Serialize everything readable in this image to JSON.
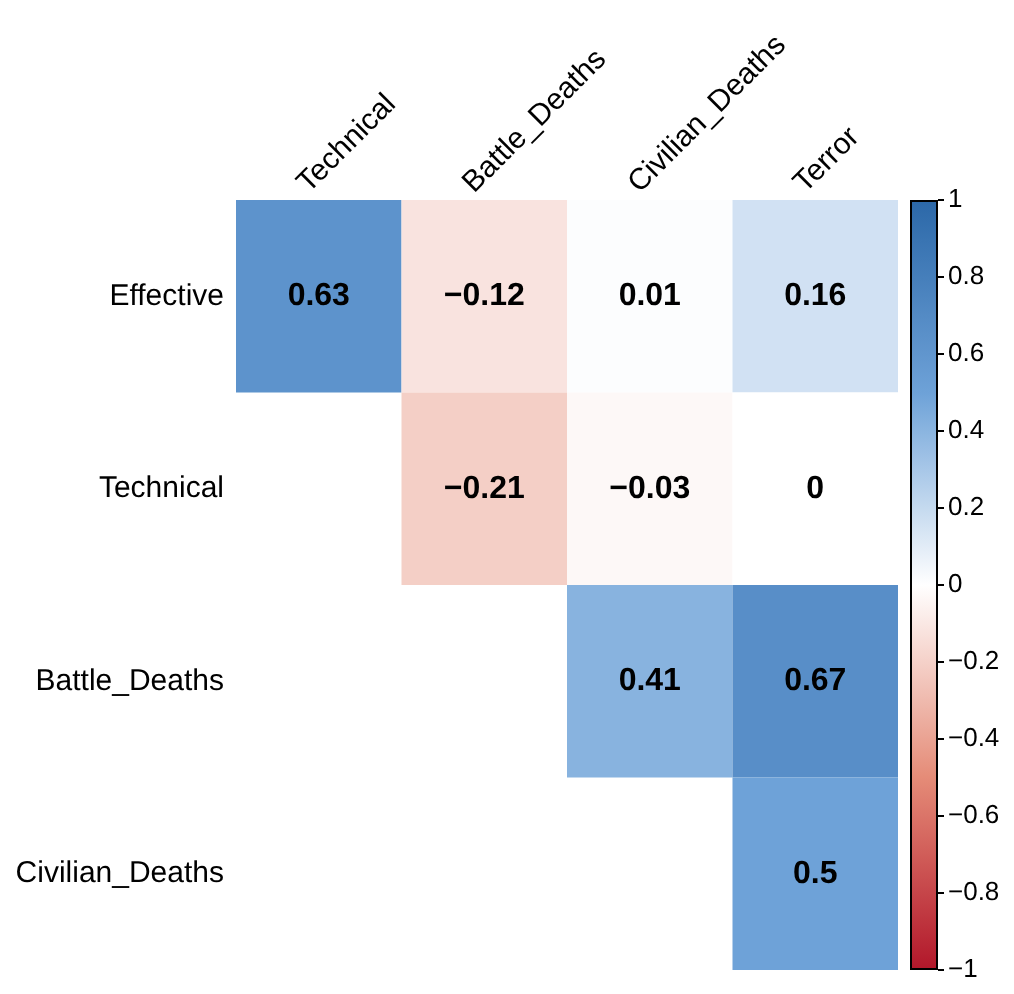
{
  "chart_data": {
    "type": "heatmap",
    "categories": [
      "Technical",
      "Battle_Deaths",
      "Civilian_Deaths",
      "Terror"
    ],
    "y_categories": [
      "Effective",
      "Technical",
      "Battle_Deaths",
      "Civilian_Deaths"
    ],
    "cells": [
      [
        0.63,
        -0.12,
        0.01,
        0.16
      ],
      [
        null,
        -0.21,
        -0.03,
        0
      ],
      [
        null,
        null,
        0.41,
        0.67
      ],
      [
        null,
        null,
        null,
        0.5
      ]
    ],
    "cell_labels": [
      [
        "0.63",
        "−0.12",
        "0.01",
        "0.16"
      ],
      [
        null,
        "−0.21",
        "−0.03",
        "0"
      ],
      [
        null,
        null,
        "0.41",
        "0.67"
      ],
      [
        null,
        null,
        null,
        "0.5"
      ]
    ],
    "clim": [
      -1,
      1
    ],
    "cticks": [
      {
        "value": 1,
        "label": "1"
      },
      {
        "value": 0.8,
        "label": "0.8"
      },
      {
        "value": 0.6,
        "label": "0.6"
      },
      {
        "value": 0.4,
        "label": "0.4"
      },
      {
        "value": 0.2,
        "label": "0.2"
      },
      {
        "value": 0,
        "label": "0"
      },
      {
        "value": -0.2,
        "label": "−0.2"
      },
      {
        "value": -0.4,
        "label": "−0.4"
      },
      {
        "value": -0.6,
        "label": "−0.6"
      },
      {
        "value": -0.8,
        "label": "−0.8"
      },
      {
        "value": -1,
        "label": "−1"
      }
    ]
  }
}
